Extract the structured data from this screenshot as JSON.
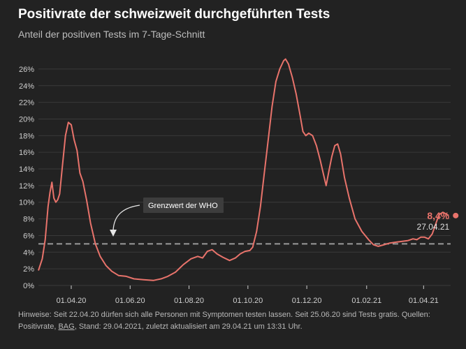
{
  "header": {
    "title": "Positivrate der schweizweit durchgeführten Tests",
    "subtitle": "Anteil der positiven Tests im 7-Tage-Schnitt"
  },
  "colors": {
    "line": "#e8736b",
    "threshold": "#9a9a9a",
    "grid": "#3a3a3a",
    "text": "#cfcfcf",
    "background": "#222222",
    "annotation_box": "#3d3d3d"
  },
  "chart_data": {
    "type": "line",
    "title": "Positivrate der schweizweit durchgeführten Tests",
    "subtitle": "Anteil der positiven Tests im 7-Tage-Schnitt",
    "xlabel": "",
    "ylabel": "",
    "x_range": [
      "2020-02-27",
      "2021-04-29"
    ],
    "ylim": [
      0,
      27
    ],
    "y_ticks": [
      0,
      2,
      4,
      6,
      8,
      10,
      12,
      14,
      16,
      18,
      20,
      22,
      24,
      26
    ],
    "y_tick_labels": [
      "0%",
      "2%",
      "4%",
      "6%",
      "8%",
      "10%",
      "12%",
      "14%",
      "16%",
      "18%",
      "20%",
      "22%",
      "24%",
      "26%"
    ],
    "x_ticks": [
      "2020-04-01",
      "2020-06-01",
      "2020-08-01",
      "2020-10-01",
      "2020-12-01",
      "2021-02-01",
      "2021-04-01"
    ],
    "x_tick_labels": [
      "01.04.20",
      "01.06.20",
      "01.08.20",
      "01.10.20",
      "01.12.20",
      "01.02.21",
      "01.04.21"
    ],
    "grid": true,
    "threshold": {
      "value": 5,
      "label": "Grenzwert der WHO"
    },
    "last_point": {
      "date": "2021-04-27",
      "value": 8.4,
      "value_label": "8,4%",
      "date_label": "27.04.21"
    },
    "series": [
      {
        "name": "Positivrate",
        "points": [
          [
            "2020-02-27",
            1.8
          ],
          [
            "2020-03-02",
            3.2
          ],
          [
            "2020-03-05",
            5.5
          ],
          [
            "2020-03-08",
            9.5
          ],
          [
            "2020-03-10",
            11.2
          ],
          [
            "2020-03-12",
            12.4
          ],
          [
            "2020-03-14",
            10.5
          ],
          [
            "2020-03-16",
            10.0
          ],
          [
            "2020-03-18",
            10.3
          ],
          [
            "2020-03-20",
            11.0
          ],
          [
            "2020-03-23",
            14.5
          ],
          [
            "2020-03-26",
            18.0
          ],
          [
            "2020-03-29",
            19.6
          ],
          [
            "2020-04-01",
            19.3
          ],
          [
            "2020-04-04",
            17.5
          ],
          [
            "2020-04-07",
            16.2
          ],
          [
            "2020-04-10",
            13.5
          ],
          [
            "2020-04-13",
            12.5
          ],
          [
            "2020-04-17",
            10.2
          ],
          [
            "2020-04-21",
            7.5
          ],
          [
            "2020-04-26",
            5.0
          ],
          [
            "2020-05-01",
            3.5
          ],
          [
            "2020-05-07",
            2.4
          ],
          [
            "2020-05-13",
            1.7
          ],
          [
            "2020-05-20",
            1.2
          ],
          [
            "2020-05-28",
            1.1
          ],
          [
            "2020-06-05",
            0.8
          ],
          [
            "2020-06-15",
            0.7
          ],
          [
            "2020-06-25",
            0.6
          ],
          [
            "2020-07-03",
            0.8
          ],
          [
            "2020-07-10",
            1.1
          ],
          [
            "2020-07-18",
            1.6
          ],
          [
            "2020-07-26",
            2.5
          ],
          [
            "2020-08-03",
            3.2
          ],
          [
            "2020-08-10",
            3.5
          ],
          [
            "2020-08-15",
            3.3
          ],
          [
            "2020-08-20",
            4.1
          ],
          [
            "2020-08-25",
            4.3
          ],
          [
            "2020-08-30",
            3.8
          ],
          [
            "2020-09-05",
            3.4
          ],
          [
            "2020-09-12",
            3.0
          ],
          [
            "2020-09-18",
            3.3
          ],
          [
            "2020-09-23",
            3.8
          ],
          [
            "2020-09-28",
            4.1
          ],
          [
            "2020-10-03",
            4.2
          ],
          [
            "2020-10-06",
            4.6
          ],
          [
            "2020-10-10",
            6.5
          ],
          [
            "2020-10-14",
            9.5
          ],
          [
            "2020-10-18",
            13.5
          ],
          [
            "2020-10-22",
            17.5
          ],
          [
            "2020-10-26",
            21.5
          ],
          [
            "2020-10-30",
            24.5
          ],
          [
            "2020-11-03",
            26.0
          ],
          [
            "2020-11-07",
            27.0
          ],
          [
            "2020-11-09",
            27.2
          ],
          [
            "2020-11-12",
            26.6
          ],
          [
            "2020-11-16",
            25.0
          ],
          [
            "2020-11-20",
            23.0
          ],
          [
            "2020-11-24",
            20.5
          ],
          [
            "2020-11-27",
            18.5
          ],
          [
            "2020-11-30",
            18.0
          ],
          [
            "2020-12-03",
            18.3
          ],
          [
            "2020-12-07",
            18.0
          ],
          [
            "2020-12-11",
            16.8
          ],
          [
            "2020-12-15",
            15.0
          ],
          [
            "2020-12-18",
            13.5
          ],
          [
            "2020-12-21",
            12.0
          ],
          [
            "2020-12-24",
            13.8
          ],
          [
            "2020-12-27",
            15.5
          ],
          [
            "2020-12-30",
            16.8
          ],
          [
            "2021-01-02",
            17.0
          ],
          [
            "2021-01-05",
            15.8
          ],
          [
            "2021-01-09",
            13.0
          ],
          [
            "2021-01-14",
            10.5
          ],
          [
            "2021-01-20",
            8.0
          ],
          [
            "2021-01-27",
            6.5
          ],
          [
            "2021-02-03",
            5.5
          ],
          [
            "2021-02-08",
            4.9
          ],
          [
            "2021-02-13",
            4.7
          ],
          [
            "2021-02-19",
            4.9
          ],
          [
            "2021-02-25",
            5.1
          ],
          [
            "2021-03-03",
            5.2
          ],
          [
            "2021-03-10",
            5.3
          ],
          [
            "2021-03-16",
            5.4
          ],
          [
            "2021-03-21",
            5.6
          ],
          [
            "2021-03-25",
            5.5
          ],
          [
            "2021-03-29",
            5.8
          ],
          [
            "2021-04-02",
            5.8
          ],
          [
            "2021-04-06",
            5.6
          ],
          [
            "2021-04-10",
            6.2
          ],
          [
            "2021-04-13",
            7.2
          ],
          [
            "2021-04-17",
            8.5
          ],
          [
            "2021-04-21",
            8.8
          ],
          [
            "2021-04-24",
            8.6
          ],
          [
            "2021-04-27",
            8.4
          ]
        ]
      }
    ]
  },
  "footer": {
    "note_text": "Hinweise: Seit 22.04.20 dürfen sich alle Personen mit Symptomen testen lassen. Seit 25.06.20 sind Tests gratis. Quellen: Positivrate, ",
    "source_link": "BAG",
    "note_suffix": ", Stand: 29.04.2021, zuletzt aktualisiert am 29.04.21 um 13:31 Uhr."
  }
}
